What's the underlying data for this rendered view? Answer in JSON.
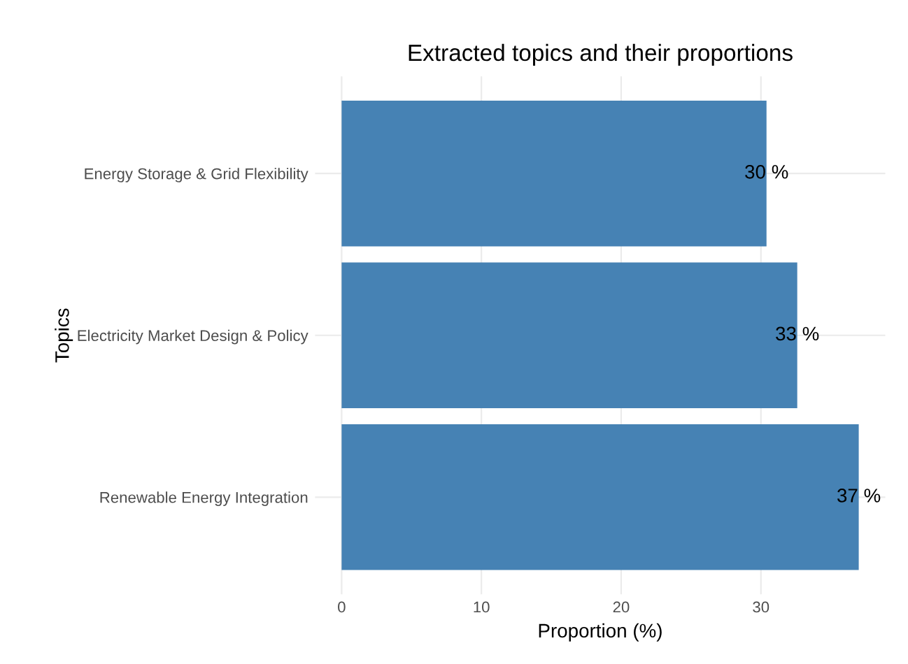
{
  "chart_data": {
    "type": "bar",
    "orientation": "horizontal",
    "title": "Extracted topics and their proportions",
    "xlabel": "Proportion (%)",
    "ylabel": "Topics",
    "categories": [
      "Energy Storage & Grid Flexibility",
      "Electricity Market Design & Policy",
      "Renewable Energy Integration"
    ],
    "values": [
      30.4,
      32.6,
      37.0
    ],
    "value_labels": [
      "30 %",
      "33 %",
      "37 %"
    ],
    "color": "#4682b4",
    "xlim": [
      -1.9,
      38.9
    ],
    "xticks": [
      0,
      10,
      20,
      30
    ],
    "grid": true,
    "legend": false
  }
}
